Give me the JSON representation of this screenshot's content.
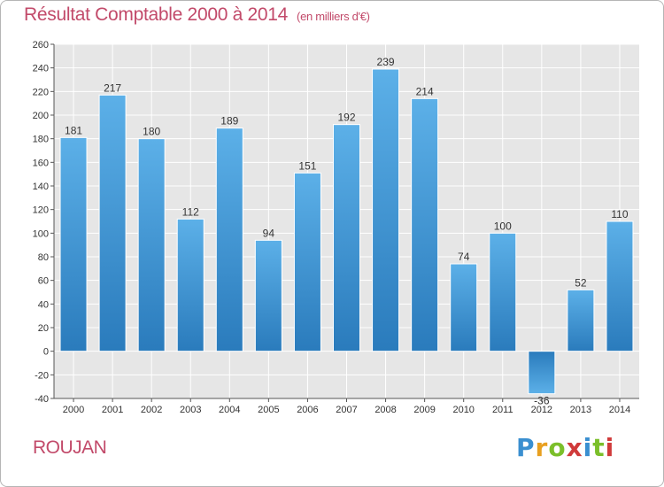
{
  "header": {
    "title": "Résultat Comptable 2000 à 2014",
    "subtitle": "(en milliers d'€)"
  },
  "footer": {
    "city": "ROUJAN",
    "logo_letters": [
      "P",
      "r",
      "o",
      "x",
      "i",
      "t",
      "i"
    ]
  },
  "colors": {
    "title": "#c24a6a",
    "bar_top": "#5aaee6",
    "bar_bottom": "#2878b8",
    "grid": "#ffffff",
    "plot_bg": "#e6e6e6",
    "logo": [
      "#3a8fd0",
      "#e8a020",
      "#7bbf2a",
      "#d03a3a",
      "#3a8fd0",
      "#7bbf2a",
      "#d03a3a"
    ]
  },
  "chart_data": {
    "type": "bar",
    "title": "Résultat Comptable 2000 à 2014",
    "subtitle": "(en milliers d'€)",
    "xlabel": "",
    "ylabel": "",
    "categories": [
      "2000",
      "2001",
      "2002",
      "2003",
      "2004",
      "2005",
      "2006",
      "2007",
      "2008",
      "2009",
      "2010",
      "2011",
      "2012",
      "2013",
      "2014"
    ],
    "values": [
      181,
      217,
      180,
      112,
      189,
      94,
      151,
      192,
      239,
      214,
      74,
      100,
      -36,
      52,
      110
    ],
    "ylim": [
      -40,
      260
    ],
    "yticks": [
      -40,
      -20,
      0,
      20,
      40,
      60,
      80,
      100,
      120,
      140,
      160,
      180,
      200,
      220,
      240,
      260
    ],
    "grid": true
  }
}
